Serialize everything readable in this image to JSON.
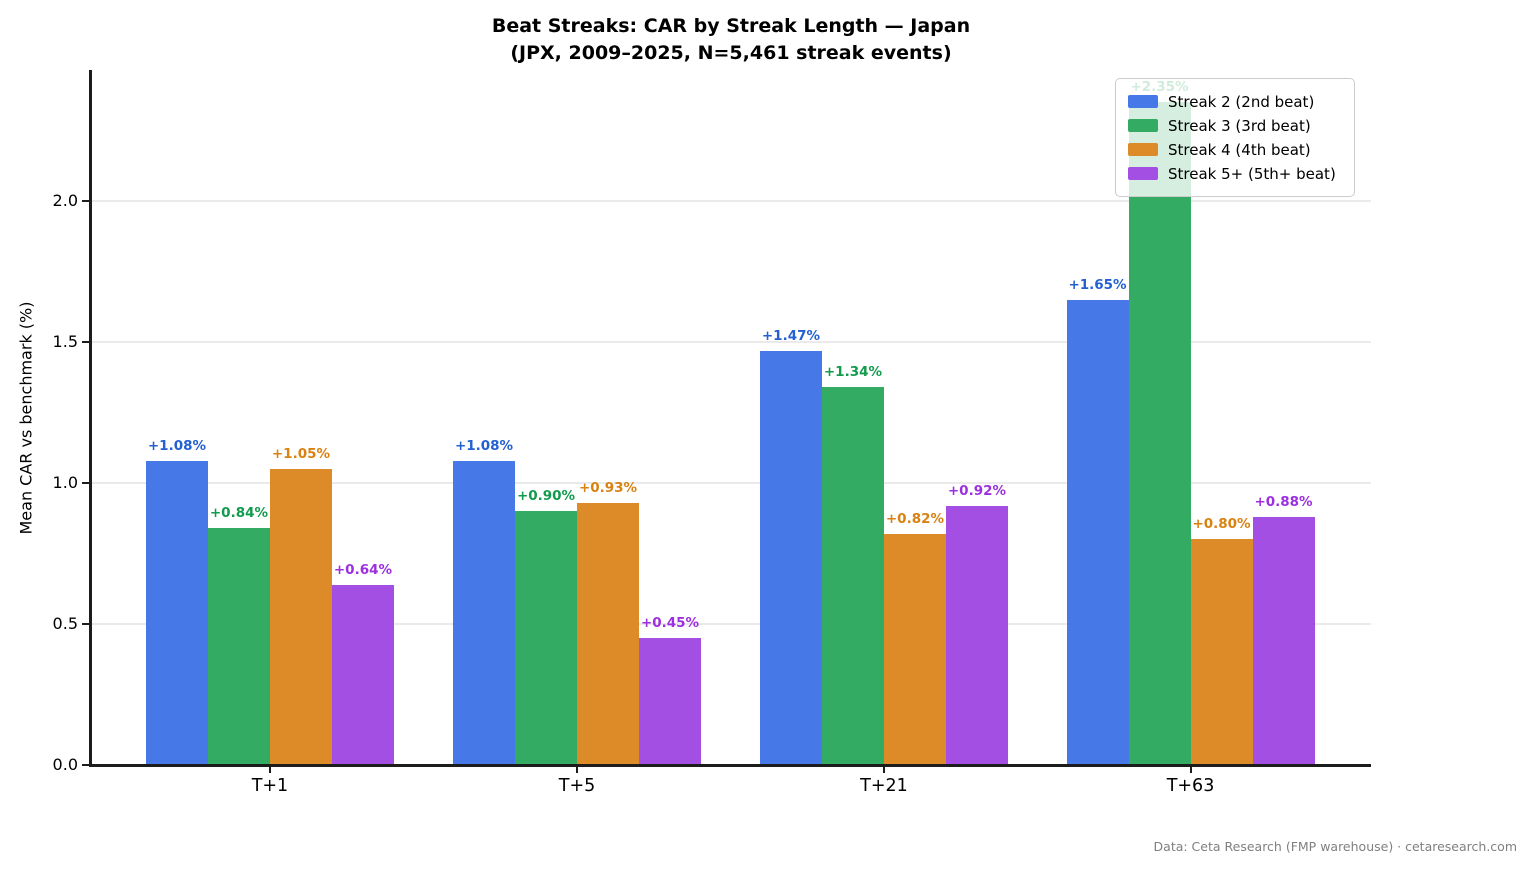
{
  "chart_data": {
    "type": "bar",
    "title": "Beat Streaks: CAR by Streak Length — Japan",
    "subtitle": "(JPX, 2009–2025, N=5,461 streak events)",
    "ylabel": "Mean CAR vs benchmark (%)",
    "xlabel": "",
    "categories": [
      "T+1",
      "T+5",
      "T+21",
      "T+63"
    ],
    "series": [
      {
        "name": "Streak 2 (2nd beat)",
        "color": "#4678e8",
        "label_color": "#2361d2",
        "values": [
          1.08,
          1.08,
          1.47,
          1.65
        ],
        "labels": [
          "+1.08%",
          "+1.08%",
          "+1.47%",
          "+1.65%"
        ]
      },
      {
        "name": "Streak 3 (3rd beat)",
        "color": "#34ab63",
        "label_color": "#129b4d",
        "values": [
          0.84,
          0.9,
          1.34,
          2.35
        ],
        "labels": [
          "+0.84%",
          "+0.90%",
          "+1.34%",
          "+2.35%"
        ]
      },
      {
        "name": "Streak 4 (4th beat)",
        "color": "#dd8a28",
        "label_color": "#d98212",
        "values": [
          1.05,
          0.93,
          0.82,
          0.8
        ],
        "labels": [
          "+1.05%",
          "+0.93%",
          "+0.82%",
          "+0.80%"
        ]
      },
      {
        "name": "Streak 5+ (5th+ beat)",
        "color": "#a44fe3",
        "label_color": "#9c30e0",
        "values": [
          0.64,
          0.45,
          0.92,
          0.88
        ],
        "labels": [
          "+0.64%",
          "+0.45%",
          "+0.92%",
          "+0.88%"
        ]
      }
    ],
    "yticks": [
      {
        "label": "0.0",
        "value": 0.0
      },
      {
        "label": "0.5",
        "value": 0.5
      },
      {
        "label": "1.0",
        "value": 1.0
      },
      {
        "label": "1.5",
        "value": 1.5
      },
      {
        "label": "2.0",
        "value": 2.0
      }
    ],
    "ylim": [
      0,
      2.465
    ],
    "grid": true,
    "grid_color": "#eaeaea",
    "legend_position": "upper right",
    "footer": "Data: Ceta Research (FMP warehouse) · cetaresearch.com"
  }
}
